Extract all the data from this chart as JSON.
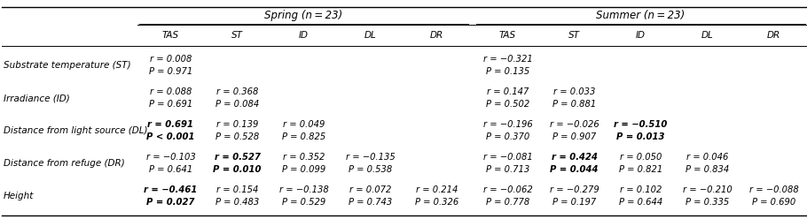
{
  "figsize": [
    9.1,
    2.48
  ],
  "dpi": 100,
  "spring_header": "Spring (n = 23)",
  "summer_header": "Summer (n = 23)",
  "col_headers": [
    "TAS",
    "ST",
    "ID",
    "DL",
    "DR",
    "TAS",
    "ST",
    "ID",
    "DL",
    "DR"
  ],
  "row_labels": [
    "Substrate temperature (ST)",
    "Irradiance (ID)",
    "Distance from light source (DL)",
    "Distance from refuge (DR)",
    "Height"
  ],
  "cells": [
    [
      [
        "r = 0.008",
        "P = 0.971",
        false,
        false
      ],
      [
        "",
        "",
        false,
        false
      ],
      [
        "",
        "",
        false,
        false
      ],
      [
        "",
        "",
        false,
        false
      ],
      [
        "",
        "",
        false,
        false
      ],
      [
        "r = -0.321",
        "P = 0.135",
        false,
        false
      ],
      [
        "",
        "",
        false,
        false
      ],
      [
        "",
        "",
        false,
        false
      ],
      [
        "",
        "",
        false,
        false
      ],
      [
        "",
        "",
        false,
        false
      ]
    ],
    [
      [
        "r = 0.088",
        "P = 0.691",
        false,
        false
      ],
      [
        "r = 0.368",
        "P = 0.084",
        false,
        false
      ],
      [
        "",
        "",
        false,
        false
      ],
      [
        "",
        "",
        false,
        false
      ],
      [
        "",
        "",
        false,
        false
      ],
      [
        "r = 0.147",
        "P = 0.502",
        false,
        false
      ],
      [
        "r = 0.033",
        "P = 0.881",
        false,
        false
      ],
      [
        "",
        "",
        false,
        false
      ],
      [
        "",
        "",
        false,
        false
      ],
      [
        "",
        "",
        false,
        false
      ]
    ],
    [
      [
        "r = 0.691",
        "P < 0.001",
        true,
        true
      ],
      [
        "r = 0.139",
        "P = 0.528",
        false,
        false
      ],
      [
        "r = 0.049",
        "P = 0.825",
        false,
        false
      ],
      [
        "",
        "",
        false,
        false
      ],
      [
        "",
        "",
        false,
        false
      ],
      [
        "r = -0.196",
        "P = 0.370",
        false,
        false
      ],
      [
        "r = -0.026",
        "P = 0.907",
        false,
        false
      ],
      [
        "r = -0.510",
        "P = 0.013",
        true,
        true
      ],
      [
        "",
        "",
        false,
        false
      ],
      [
        "",
        "",
        false,
        false
      ]
    ],
    [
      [
        "r = -0.103",
        "P = 0.641",
        false,
        false
      ],
      [
        "r = 0.527",
        "P = 0.010",
        true,
        true
      ],
      [
        "r = 0.352",
        "P = 0.099",
        false,
        false
      ],
      [
        "r = -0.135",
        "P = 0.538",
        false,
        false
      ],
      [
        "",
        "",
        false,
        false
      ],
      [
        "r = -0.081",
        "P = 0.713",
        false,
        false
      ],
      [
        "r = 0.424",
        "P = 0.044",
        true,
        true
      ],
      [
        "r = 0.050",
        "P = 0.821",
        false,
        false
      ],
      [
        "r = 0.046",
        "P = 0.834",
        false,
        false
      ],
      [
        "",
        "",
        false,
        false
      ]
    ],
    [
      [
        "r = -0.461",
        "P = 0.027",
        true,
        true
      ],
      [
        "r = 0.154",
        "P = 0.483",
        false,
        false
      ],
      [
        "r = -0.138",
        "P = 0.529",
        false,
        false
      ],
      [
        "r = 0.072",
        "P = 0.743",
        false,
        false
      ],
      [
        "r = 0.214",
        "P = 0.326",
        false,
        false
      ],
      [
        "r = -0.062",
        "P = 0.778",
        false,
        false
      ],
      [
        "r = -0.279",
        "P = 0.197",
        false,
        false
      ],
      [
        "r = 0.102",
        "P = 0.644",
        false,
        false
      ],
      [
        "r = -0.210",
        "P = 0.335",
        false,
        false
      ],
      [
        "r = -0.088",
        "P = 0.690",
        false,
        false
      ]
    ]
  ],
  "background_color": "#ffffff"
}
